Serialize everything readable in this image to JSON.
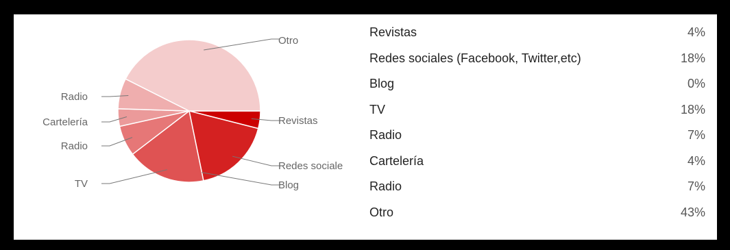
{
  "chart_data": {
    "type": "pie",
    "title": "",
    "start_angle_deg": 90,
    "direction": "clockwise",
    "slices": [
      {
        "label": "Revistas",
        "value": 4,
        "color": "#cc0000"
      },
      {
        "label": "Redes sociales (Facebook, Twitter,etc)",
        "value": 18,
        "color": "#d42121"
      },
      {
        "label": "Blog",
        "value": 0,
        "color": "#d94343"
      },
      {
        "label": "TV",
        "value": 18,
        "color": "#df5353"
      },
      {
        "label": "Radio",
        "value": 7,
        "color": "#e67777"
      },
      {
        "label": "Cartelería",
        "value": 4,
        "color": "#eb9a9a"
      },
      {
        "label": "Radio",
        "value": 7,
        "color": "#efaeae"
      },
      {
        "label": "Otro",
        "value": 43,
        "color": "#f4cccc"
      }
    ],
    "callout_labels": [
      "Revistas",
      "Redes sociale",
      "Blog",
      "TV",
      "Radio",
      "Cartelería",
      "Radio",
      "Otro"
    ],
    "legend": {
      "placement": "right",
      "rows": [
        {
          "label": "Revistas",
          "percent": "4%"
        },
        {
          "label": "Redes sociales (Facebook, Twitter,etc)",
          "percent": "18%"
        },
        {
          "label": "Blog",
          "percent": "0%"
        },
        {
          "label": "TV",
          "percent": "18%"
        },
        {
          "label": "Radio",
          "percent": "7%"
        },
        {
          "label": "Cartelería",
          "percent": "4%"
        },
        {
          "label": "Radio",
          "percent": "7%"
        },
        {
          "label": "Otro",
          "percent": "43%"
        }
      ]
    }
  }
}
